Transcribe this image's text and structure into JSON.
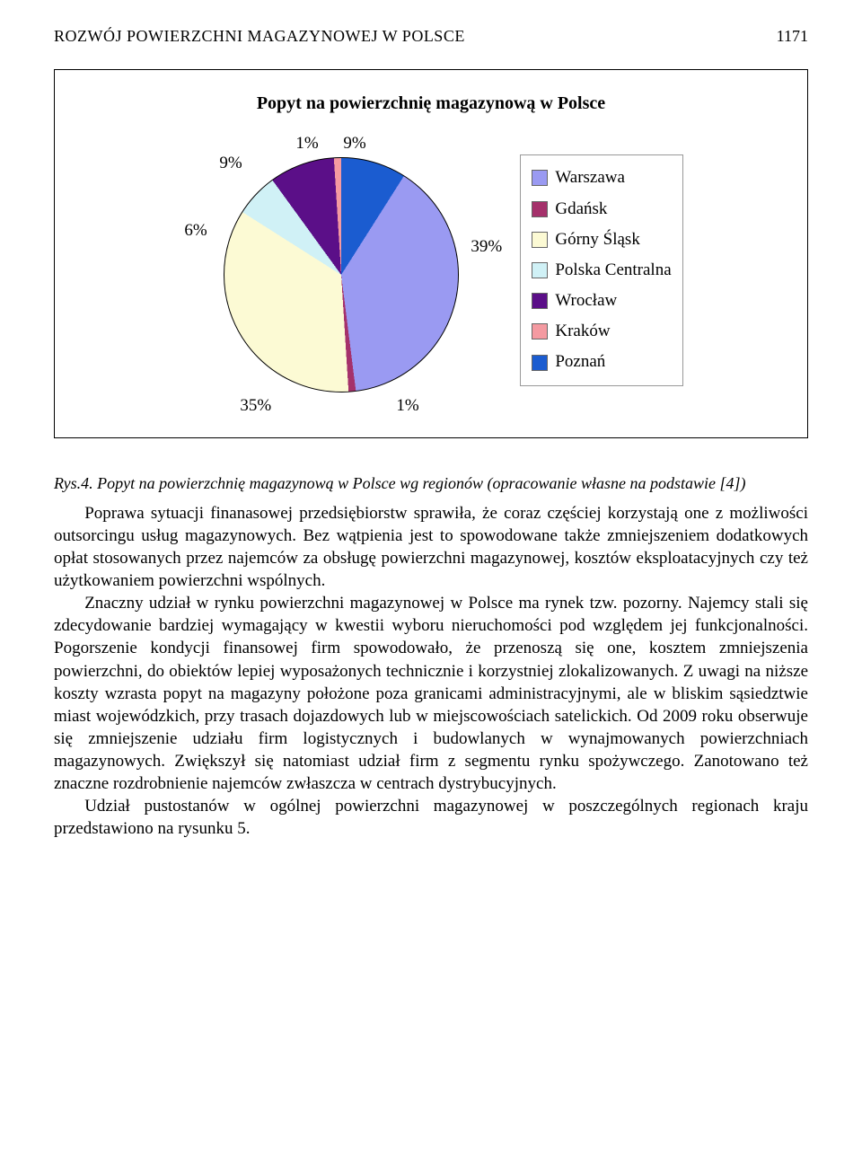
{
  "header": {
    "title": "ROZWÓJ POWIERZCHNI MAGAZYNOWEJ W POLSCE",
    "page_number": "1171"
  },
  "chart": {
    "type": "pie",
    "title": "Popyt na powierzchnię magazynową w Polsce",
    "background_color": "#ffffff",
    "border_color": "#000000",
    "label_fontsize": 19,
    "title_fontsize": 20,
    "slices": [
      {
        "label": "Warszawa",
        "value": 39,
        "color": "#9a9af2",
        "display": "39%"
      },
      {
        "label": "Gdańsk",
        "value": 1,
        "color": "#a5316b",
        "display": "1%"
      },
      {
        "label": "Górny Śląsk",
        "value": 35,
        "color": "#fcfad4",
        "display": "35%"
      },
      {
        "label": "Polska Centralna",
        "value": 6,
        "color": "#d0f1f6",
        "display": "6%"
      },
      {
        "label": "Wrocław",
        "value": 9,
        "color": "#5b0f88",
        "display": "9%"
      },
      {
        "label": "Kraków",
        "value": 1,
        "color": "#f49aa1",
        "display": "1%"
      },
      {
        "label": "Poznań",
        "value": 9,
        "color": "#1b5cd0",
        "display": "9%"
      }
    ],
    "legend_border_color": "#999999"
  },
  "caption": {
    "prefix": "Rys.4.",
    "text": " Popyt na powierzchnię magazynową w Polsce wg regionów (opracowanie własne na podstawie [4])"
  },
  "paragraphs": {
    "p1": "Poprawa sytuacji finanasowej przedsiębiorstw sprawiła, że coraz częściej korzystają one z możliwości outsorcingu usług magazynowych. Bez wątpienia jest to spowodowane także zmniejszeniem dodatkowych opłat stosowanych przez najemców za obsługę powierzchni magazynowej, kosztów eksploatacyjnych czy też użytkowaniem powierzchni wspólnych.",
    "p2": "Znaczny udział w rynku powierzchni magazynowej w Polsce ma rynek tzw. pozorny. Najemcy stali się zdecydowanie bardziej wymagający w kwestii wyboru nieruchomości pod względem jej funkcjonalności. Pogorszenie kondycji finansowej firm spowodowało, że przenoszą się one, kosztem zmniejszenia powierzchni, do obiektów lepiej wyposażonych technicznie i korzystniej zlokalizowanych. Z uwagi na niższe koszty wzrasta popyt na magazyny położone poza granicami administracyjnymi, ale w bliskim sąsiedztwie miast wojewódzkich, przy trasach dojazdowych lub w miejscowościach satelickich. Od 2009 roku obserwuje się zmniejszenie udziału firm logistycznych i budowlanych w wynajmowanych powierzchniach magazynowych. Zwiększył się natomiast udział firm z segmentu rynku spożywczego. Zanotowano też znaczne rozdrobnienie najemców zwłaszcza w centrach dystrybucyjnych.",
    "p3": "Udział pustostanów w ogólnej powierzchni magazynowej w poszczególnych regionach kraju przedstawiono na rysunku 5."
  }
}
